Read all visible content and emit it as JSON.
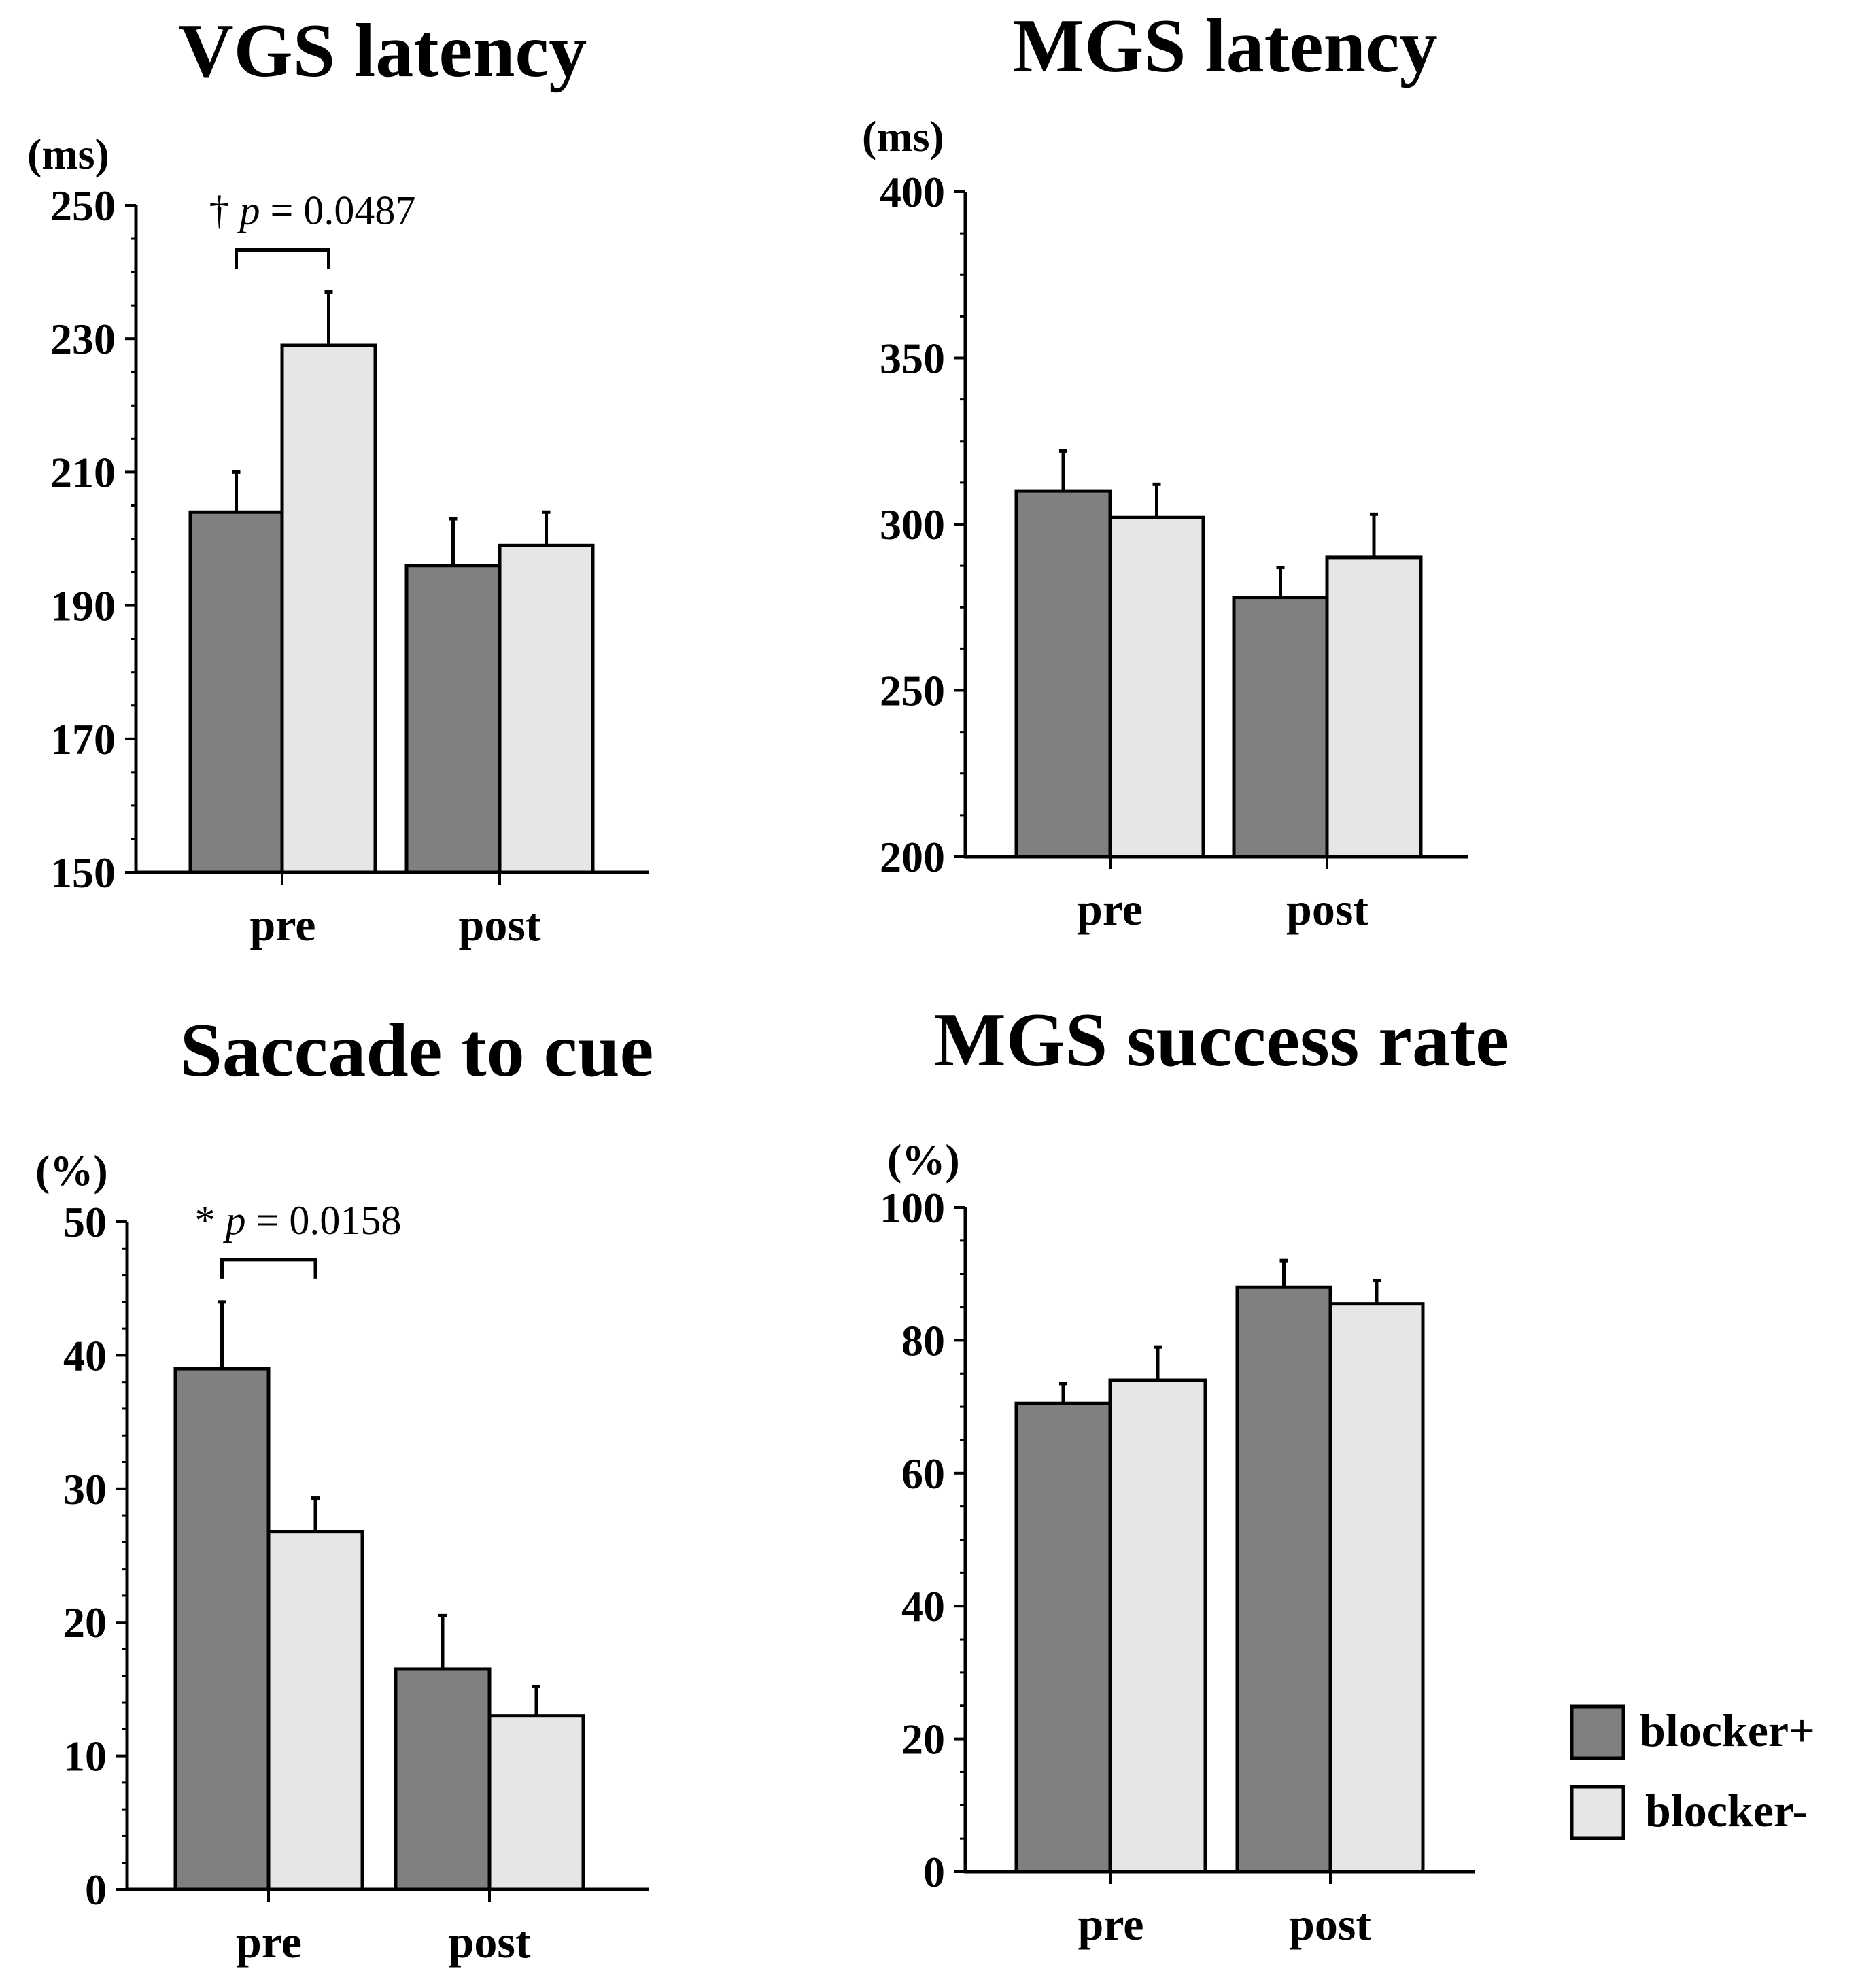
{
  "colors": {
    "blocker_plus": "#808080",
    "blocker_minus": "#e6e6e6",
    "stroke": "#000000"
  },
  "legend": [
    {
      "name": "blocker+",
      "color": "#808080"
    },
    {
      "name": "blocker-",
      "color": "#e6e6e6"
    }
  ],
  "chart_data": [
    {
      "type": "bar",
      "title": "VGS latency",
      "ylabel": "(ms)",
      "categories": [
        "pre",
        "post"
      ],
      "ylim": [
        150,
        250
      ],
      "yticks": [
        150,
        170,
        190,
        210,
        230,
        250
      ],
      "series": [
        {
          "name": "blocker+",
          "values": [
            204,
            196
          ],
          "errors": [
            6,
            7
          ]
        },
        {
          "name": "blocker-",
          "values": [
            229,
            199
          ],
          "errors": [
            8,
            5
          ]
        }
      ],
      "annotations": [
        {
          "dagger": "†",
          "p": "p",
          "eq": " = 0.0487",
          "category": 0
        }
      ]
    },
    {
      "type": "bar",
      "title": "MGS latency",
      "ylabel": "(ms)",
      "categories": [
        "pre",
        "post"
      ],
      "ylim": [
        200,
        400
      ],
      "yticks": [
        200,
        250,
        300,
        350,
        400
      ],
      "series": [
        {
          "name": "blocker+",
          "values": [
            310,
            278
          ],
          "errors": [
            12,
            9
          ]
        },
        {
          "name": "blocker-",
          "values": [
            302,
            290
          ],
          "errors": [
            10,
            13
          ]
        }
      ],
      "annotations": []
    },
    {
      "type": "bar",
      "title": "Saccade to cue",
      "ylabel": "(%)",
      "categories": [
        "pre",
        "post"
      ],
      "ylim": [
        0,
        50
      ],
      "yticks": [
        0,
        10,
        20,
        30,
        40,
        50
      ],
      "series": [
        {
          "name": "blocker+",
          "values": [
            39,
            16.5
          ],
          "errors": [
            5,
            4
          ]
        },
        {
          "name": "blocker-",
          "values": [
            26.8,
            13
          ],
          "errors": [
            2.5,
            2.2
          ]
        }
      ],
      "annotations": [
        {
          "dagger": "*",
          "p": "p",
          "eq": " = 0.0158",
          "category": 0
        }
      ]
    },
    {
      "type": "bar",
      "title": "MGS success rate",
      "ylabel": "(%)",
      "categories": [
        "pre",
        "post"
      ],
      "ylim": [
        0,
        100
      ],
      "yticks": [
        0,
        20,
        40,
        60,
        80,
        100
      ],
      "series": [
        {
          "name": "blocker+",
          "values": [
            70.5,
            88
          ],
          "errors": [
            3,
            4
          ]
        },
        {
          "name": "blocker-",
          "values": [
            74,
            85.5
          ],
          "errors": [
            5,
            3.5
          ]
        }
      ],
      "annotations": []
    }
  ]
}
